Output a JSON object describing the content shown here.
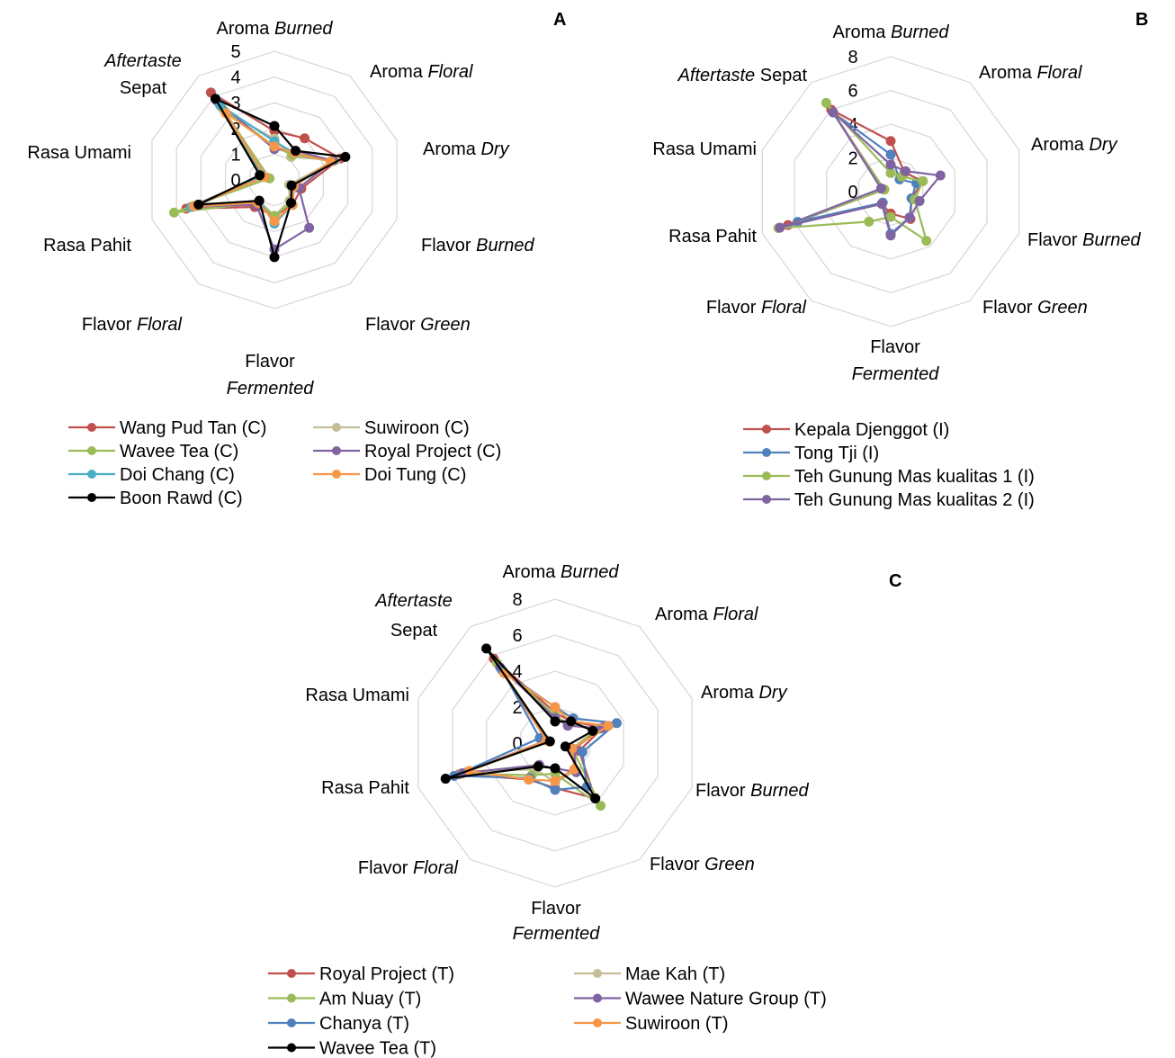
{
  "chart_data": [
    {
      "panel": "A",
      "type": "radar",
      "axes": [
        {
          "pre": "Aroma ",
          "it": "Burned"
        },
        {
          "pre": "Aroma ",
          "it": "Floral"
        },
        {
          "pre": "Aroma ",
          "it": "Dry"
        },
        {
          "pre": "Flavor ",
          "it": "Burned"
        },
        {
          "pre": "Flavor ",
          "it": "Green"
        },
        {
          "pre": "Flavor",
          "it": "Fermented"
        },
        {
          "pre": "Flavor ",
          "it": "Floral"
        },
        {
          "pre": "Rasa Pahit",
          "it": ""
        },
        {
          "pre": "Rasa Umami",
          "it": ""
        },
        {
          "pre": "Sepat",
          "it": "Aftertaste"
        }
      ],
      "rmax": 5,
      "ticks": [
        "0",
        "1",
        "2",
        "3",
        "4",
        "5"
      ],
      "grid": true,
      "series": [
        {
          "name": "Wang Pud Tan (C)",
          "color": "#c0504d",
          "values": [
            1.9,
            2.0,
            2.7,
            1.1,
            1.2,
            1.4,
            1.3,
            3.6,
            0.5,
            4.2
          ]
        },
        {
          "name": "Suwiroon (C)",
          "color": "#c4bd97",
          "values": [
            1.6,
            1.1,
            2.5,
            0.6,
            1.0,
            1.4,
            1.0,
            3.3,
            0.3,
            3.3
          ]
        },
        {
          "name": "Wavee Tea (C)",
          "color": "#9bbb59",
          "values": [
            1.3,
            1.2,
            2.4,
            0.8,
            1.1,
            1.4,
            1.1,
            4.1,
            0.2,
            3.5
          ]
        },
        {
          "name": "Royal Project (C)",
          "color": "#8064a2",
          "values": [
            1.2,
            1.4,
            2.4,
            1.0,
            2.3,
            2.7,
            1.2,
            3.3,
            0.5,
            3.8
          ]
        },
        {
          "name": "Doi Chang (C)",
          "color": "#4bacc6",
          "values": [
            1.5,
            1.3,
            2.3,
            0.8,
            1.2,
            1.7,
            1.0,
            3.4,
            0.5,
            3.6
          ]
        },
        {
          "name": "Doi Tung (C)",
          "color": "#f79646",
          "values": [
            1.3,
            1.3,
            2.3,
            0.8,
            1.2,
            1.6,
            1.1,
            3.3,
            0.4,
            3.2
          ]
        },
        {
          "name": "Boon Rawd (C)",
          "color": "#000000",
          "values": [
            2.1,
            1.4,
            2.9,
            0.7,
            1.1,
            3.0,
            1.0,
            3.1,
            0.6,
            3.9
          ]
        }
      ],
      "legend": [
        "Wang Pud Tan (C)",
        "Suwiroon (C)",
        "Wavee Tea (C)",
        "Royal Project (C)",
        "Doi Chang (C)",
        "Doi Tung (C)",
        "Boon Rawd (C)"
      ]
    },
    {
      "panel": "B",
      "type": "radar",
      "axes": [
        {
          "pre": "Aroma ",
          "it": "Burned"
        },
        {
          "pre": "Aroma ",
          "it": "Floral"
        },
        {
          "pre": "Aroma ",
          "it": "Dry"
        },
        {
          "pre": "Flavor ",
          "it": "Burned"
        },
        {
          "pre": "Flavor ",
          "it": "Green"
        },
        {
          "pre": "Flavor",
          "it": "Fermented"
        },
        {
          "pre": "Flavor ",
          "it": "Floral"
        },
        {
          "pre": "Rasa Pahit",
          "it": ""
        },
        {
          "pre": "Rasa Umami",
          "it": ""
        },
        {
          "pre": "Sepat",
          "it": "Aftertaste"
        }
      ],
      "rmax": 8,
      "ticks": [
        "0",
        "2",
        "4",
        "6",
        "8"
      ],
      "grid": true,
      "series": [
        {
          "name": "Kepala Djenggot (I)",
          "color": "#c0504d",
          "values": [
            3.0,
            1.4,
            2.0,
            1.3,
            2.0,
            1.3,
            0.9,
            6.4,
            0.4,
            6.0
          ]
        },
        {
          "name": "Tong Tji (I)",
          "color": "#4f81bd",
          "values": [
            2.2,
            0.9,
            1.6,
            1.3,
            1.9,
            2.5,
            0.8,
            5.8,
            0.5,
            5.8
          ]
        },
        {
          "name": "Teh Gunung Mas kualitas 1 (I)",
          "color": "#9bbb59",
          "values": [
            1.1,
            1.1,
            2.0,
            1.5,
            3.6,
            1.5,
            2.2,
            7.0,
            0.4,
            6.5
          ]
        },
        {
          "name": "Teh Gunung Mas kualitas 2 (I)",
          "color": "#8064a2",
          "values": [
            1.6,
            1.5,
            3.1,
            1.8,
            1.9,
            2.6,
            0.9,
            6.9,
            0.6,
            5.8
          ]
        }
      ],
      "legend": [
        "Kepala Djenggot (I)",
        "Tong Tji (I)",
        "Teh Gunung Mas kualitas 1 (I)",
        "Teh Gunung Mas kualitas 2 (I)"
      ]
    },
    {
      "panel": "C",
      "type": "radar",
      "axes": [
        {
          "pre": "Aroma ",
          "it": "Burned"
        },
        {
          "pre": "Aroma ",
          "it": "Floral"
        },
        {
          "pre": "Aroma ",
          "it": "Dry"
        },
        {
          "pre": "Flavor ",
          "it": "Burned"
        },
        {
          "pre": "Flavor ",
          "it": "Green"
        },
        {
          "pre": "Flavor",
          "it": "Fermented"
        },
        {
          "pre": "Flavor ",
          "it": "Floral"
        },
        {
          "pre": "Rasa Pahit",
          "it": ""
        },
        {
          "pre": "Rasa Umami",
          "it": ""
        },
        {
          "pre": "Sepat",
          "it": "Aftertaste"
        }
      ],
      "rmax": 8,
      "ticks": [
        "0",
        "2",
        "4",
        "6",
        "8"
      ],
      "grid": true,
      "series": [
        {
          "name": "Royal Project (T)",
          "color": "#c0504d",
          "values": [
            1.7,
            1.5,
            2.8,
            1.4,
            3.8,
            2.5,
            2.5,
            5.6,
            0.5,
            5.8
          ]
        },
        {
          "name": "Mae Kah (T)",
          "color": "#c4bd97",
          "values": [
            1.6,
            1.2,
            2.6,
            1.0,
            1.9,
            2.2,
            1.8,
            5.1,
            0.3,
            5.0
          ]
        },
        {
          "name": "Am Nuay (T)",
          "color": "#9bbb59",
          "values": [
            1.5,
            1.3,
            2.4,
            1.0,
            4.3,
            1.7,
            2.2,
            5.5,
            0.3,
            5.5
          ]
        },
        {
          "name": "Wawee Nature Group (T)",
          "color": "#8064a2",
          "values": [
            1.4,
            1.2,
            2.7,
            1.1,
            2.0,
            1.4,
            1.5,
            5.4,
            0.5,
            5.2
          ]
        },
        {
          "name": "Chanya (T)",
          "color": "#4f81bd",
          "values": [
            2.0,
            1.7,
            3.6,
            1.6,
            3.0,
            2.6,
            2.4,
            5.9,
            0.9,
            5.0
          ]
        },
        {
          "name": "Suwiroon (T)",
          "color": "#f79646",
          "values": [
            2.0,
            1.5,
            3.1,
            1.0,
            1.8,
            2.1,
            2.5,
            5.0,
            0.5,
            4.8
          ]
        },
        {
          "name": "Wavee Tea (T)",
          "color": "#000000",
          "values": [
            1.2,
            1.5,
            2.2,
            0.6,
            3.8,
            1.4,
            1.6,
            6.4,
            0.3,
            6.5
          ]
        }
      ],
      "legend": [
        "Royal Project (T)",
        "Mae Kah (T)",
        "Am Nuay (T)",
        "Wawee Nature Group (T)",
        "Chanya (T)",
        "Suwiroon (T)",
        "Wavee Tea (T)"
      ]
    }
  ]
}
